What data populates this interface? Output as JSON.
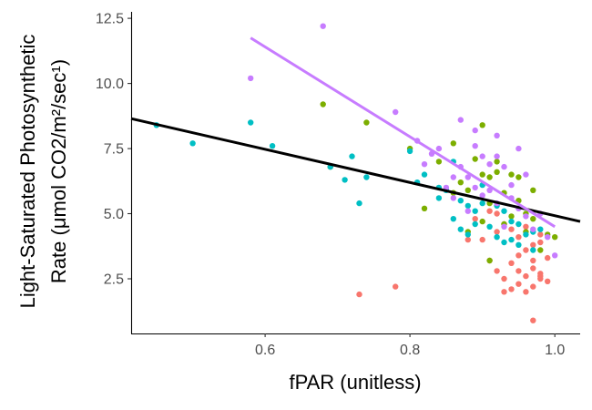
{
  "chart_data": {
    "type": "scatter",
    "xlabel": "fPAR (unitless)",
    "ylabel_lines": [
      "Light-Saturated Photosynthetic",
      "Rate (μmol CO2/m²/sec¹)"
    ],
    "xlim": [
      0.415,
      1.035
    ],
    "ylim": [
      0.4,
      12.75
    ],
    "x_ticks": [
      0.6,
      0.8,
      1.0
    ],
    "x_tick_labels": [
      "0.6",
      "0.8",
      "1.0"
    ],
    "y_ticks": [
      2.5,
      5.0,
      7.5,
      10.0,
      12.5
    ],
    "y_tick_labels": [
      "2.5",
      "5.0",
      "7.5",
      "10.0",
      "12.5"
    ],
    "grid": false,
    "legend": "none",
    "series": [
      {
        "color": "#F8766D",
        "points": [
          [
            0.73,
            1.9
          ],
          [
            0.78,
            2.2
          ],
          [
            0.91,
            3.2
          ],
          [
            0.92,
            2.8
          ],
          [
            0.93,
            2.0
          ],
          [
            0.93,
            2.5
          ],
          [
            0.94,
            2.1
          ],
          [
            0.94,
            3.1
          ],
          [
            0.95,
            2.3
          ],
          [
            0.95,
            4.1
          ],
          [
            0.95,
            3.4
          ],
          [
            0.96,
            2.0
          ],
          [
            0.96,
            3.6
          ],
          [
            0.96,
            2.6
          ],
          [
            0.97,
            0.9
          ],
          [
            0.97,
            2.2
          ],
          [
            0.97,
            2.9
          ],
          [
            0.97,
            3.8
          ],
          [
            0.98,
            2.5
          ],
          [
            0.98,
            4.2
          ],
          [
            0.98,
            2.7
          ],
          [
            0.99,
            2.4
          ],
          [
            0.99,
            3.3
          ],
          [
            0.9,
            4.0
          ],
          [
            0.91,
            5.1
          ],
          [
            0.92,
            4.3
          ],
          [
            0.93,
            4.6
          ],
          [
            0.89,
            4.8
          ],
          [
            0.88,
            4.0
          ],
          [
            0.94,
            4.4
          ],
          [
            0.96,
            4.5
          ],
          [
            0.97,
            3.2
          ],
          [
            0.92,
            5.0
          ],
          [
            0.95,
            2.8
          ],
          [
            0.98,
            2.6
          ],
          [
            0.98,
            3.9
          ]
        ]
      },
      {
        "color": "#7CAE00",
        "points": [
          [
            0.68,
            9.2
          ],
          [
            0.69,
            6.8
          ],
          [
            0.74,
            8.5
          ],
          [
            0.8,
            7.5
          ],
          [
            0.82,
            5.2
          ],
          [
            0.84,
            7.0
          ],
          [
            0.86,
            7.7
          ],
          [
            0.87,
            6.2
          ],
          [
            0.88,
            5.9
          ],
          [
            0.88,
            4.3
          ],
          [
            0.89,
            7.1
          ],
          [
            0.9,
            8.4
          ],
          [
            0.9,
            6.5
          ],
          [
            0.91,
            6.4
          ],
          [
            0.91,
            5.4
          ],
          [
            0.92,
            6.6
          ],
          [
            0.92,
            7.0
          ],
          [
            0.93,
            5.8
          ],
          [
            0.93,
            4.6
          ],
          [
            0.94,
            6.5
          ],
          [
            0.94,
            4.9
          ],
          [
            0.95,
            5.5
          ],
          [
            0.95,
            6.4
          ],
          [
            0.96,
            5.0
          ],
          [
            0.96,
            4.3
          ],
          [
            0.97,
            4.8
          ],
          [
            0.97,
            5.9
          ],
          [
            0.98,
            3.6
          ],
          [
            0.99,
            4.2
          ],
          [
            1.0,
            4.1
          ],
          [
            0.91,
            3.2
          ],
          [
            0.9,
            4.7
          ],
          [
            0.86,
            5.8
          ]
        ]
      },
      {
        "color": "#00BFC4",
        "points": [
          [
            0.45,
            8.4
          ],
          [
            0.5,
            7.7
          ],
          [
            0.58,
            8.5
          ],
          [
            0.61,
            7.6
          ],
          [
            0.69,
            6.8
          ],
          [
            0.71,
            6.3
          ],
          [
            0.72,
            7.2
          ],
          [
            0.73,
            5.4
          ],
          [
            0.74,
            6.4
          ],
          [
            0.8,
            7.4
          ],
          [
            0.81,
            6.2
          ],
          [
            0.82,
            6.5
          ],
          [
            0.84,
            6.0
          ],
          [
            0.85,
            5.9
          ],
          [
            0.86,
            4.8
          ],
          [
            0.87,
            5.5
          ],
          [
            0.87,
            4.4
          ],
          [
            0.88,
            5.3
          ],
          [
            0.88,
            4.2
          ],
          [
            0.89,
            5.1
          ],
          [
            0.89,
            4.6
          ],
          [
            0.9,
            5.4
          ],
          [
            0.9,
            6.1
          ],
          [
            0.91,
            4.5
          ],
          [
            0.92,
            5.3
          ],
          [
            0.92,
            4.1
          ],
          [
            0.93,
            5.1
          ],
          [
            0.93,
            3.9
          ],
          [
            0.94,
            4.7
          ],
          [
            0.95,
            4.6
          ],
          [
            0.95,
            3.8
          ],
          [
            0.96,
            4.2
          ],
          [
            0.97,
            4.3
          ],
          [
            0.97,
            3.6
          ],
          [
            0.98,
            4.4
          ],
          [
            0.86,
            7.0
          ],
          [
            0.84,
            5.6
          ],
          [
            0.94,
            4.0
          ]
        ]
      },
      {
        "color": "#C77CFF",
        "points": [
          [
            0.58,
            10.2
          ],
          [
            0.68,
            12.2
          ],
          [
            0.78,
            8.9
          ],
          [
            0.81,
            7.8
          ],
          [
            0.82,
            6.9
          ],
          [
            0.83,
            7.3
          ],
          [
            0.84,
            7.5
          ],
          [
            0.85,
            6.0
          ],
          [
            0.86,
            5.6
          ],
          [
            0.87,
            8.6
          ],
          [
            0.87,
            6.8
          ],
          [
            0.88,
            6.4
          ],
          [
            0.88,
            5.1
          ],
          [
            0.89,
            7.6
          ],
          [
            0.89,
            6.0
          ],
          [
            0.9,
            7.2
          ],
          [
            0.9,
            5.7
          ],
          [
            0.91,
            6.9
          ],
          [
            0.91,
            5.9
          ],
          [
            0.92,
            8.0
          ],
          [
            0.92,
            7.2
          ],
          [
            0.92,
            5.4
          ],
          [
            0.93,
            6.8
          ],
          [
            0.93,
            4.5
          ],
          [
            0.94,
            5.6
          ],
          [
            0.95,
            5.2
          ],
          [
            0.95,
            7.5
          ],
          [
            0.96,
            6.5
          ],
          [
            0.96,
            4.9
          ],
          [
            0.97,
            4.4
          ],
          [
            0.98,
            5.0
          ],
          [
            0.99,
            4.1
          ],
          [
            1.0,
            3.4
          ],
          [
            0.89,
            8.2
          ],
          [
            0.94,
            6.1
          ],
          [
            0.86,
            6.4
          ]
        ]
      }
    ],
    "fit_lines": [
      {
        "color": "#000000",
        "x": [
          0.415,
          1.035
        ],
        "y": [
          8.65,
          4.7
        ]
      },
      {
        "color": "#C77CFF",
        "x": [
          0.58,
          1.0
        ],
        "y": [
          11.75,
          4.5
        ]
      }
    ]
  }
}
